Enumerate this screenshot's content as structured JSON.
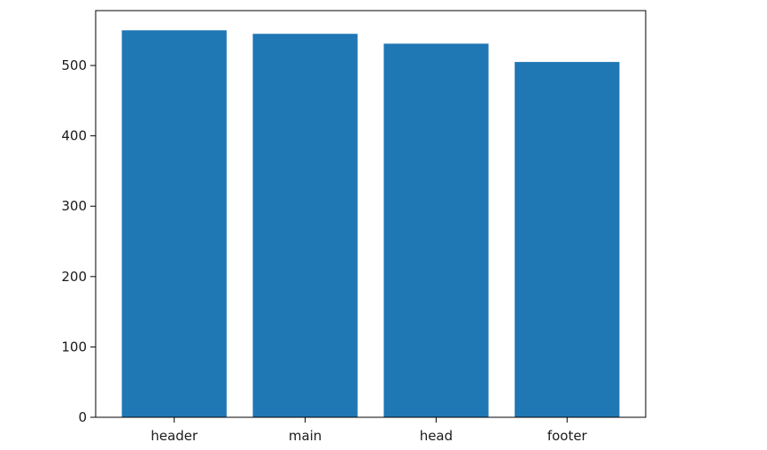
{
  "chart_data": {
    "type": "bar",
    "title": "",
    "xlabel": "",
    "ylabel": "",
    "categories": [
      "header",
      "main",
      "head",
      "footer"
    ],
    "values": [
      550,
      545,
      531,
      505
    ],
    "ylim": [
      0,
      578
    ],
    "yticks": [
      0,
      100,
      200,
      300,
      400,
      500
    ],
    "ytick_labels": [
      "0",
      "100",
      "200",
      "300",
      "400",
      "500"
    ],
    "grid": false,
    "legend": "none",
    "bar_color": "#1f77b4",
    "axis_color": "#000000"
  }
}
